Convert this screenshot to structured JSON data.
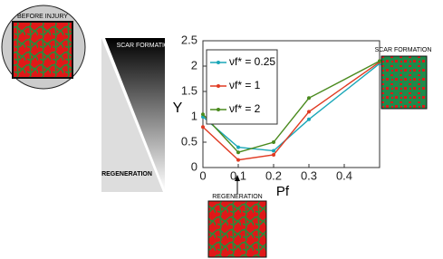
{
  "chart_data": {
    "type": "line",
    "x": [
      0,
      0.1,
      0.2,
      0.3,
      0.5
    ],
    "xlabel": "Pf",
    "ylabel": "Υ",
    "xlim": [
      0,
      0.5
    ],
    "ylim": [
      0,
      2.5
    ],
    "xticks": [
      0,
      0.1,
      0.2,
      0.3,
      0.4
    ],
    "yticks": [
      0,
      0.5,
      1,
      1.5,
      2,
      2.5
    ],
    "legend": "upper left",
    "series": [
      {
        "name": "νf* = 0.25",
        "color": "#1aa7b8",
        "values": [
          1.0,
          0.4,
          0.33,
          0.95,
          2.05
        ]
      },
      {
        "name": "νf* = 1",
        "color": "#e03a22",
        "values": [
          0.8,
          0.15,
          0.25,
          1.1,
          2.08
        ]
      },
      {
        "name": "νf* = 2",
        "color": "#4a8a1e",
        "values": [
          1.05,
          0.3,
          0.5,
          1.37,
          2.1
        ]
      }
    ]
  },
  "annotations": {
    "before": "BEFORE INJURY",
    "scar_top": "SCAR FORMATION",
    "regen_left": "REGENERATION",
    "scar_right": "SCAR FORMATION",
    "regen_bottom": "REGENERATION"
  }
}
